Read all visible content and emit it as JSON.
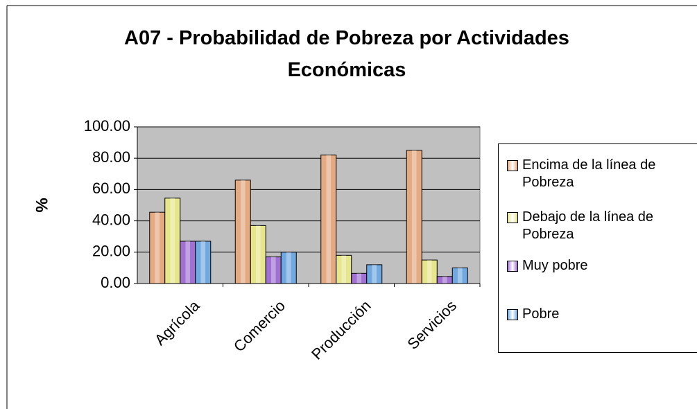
{
  "chart_data": {
    "type": "bar",
    "title": "A07 - Probabilidad de Pobreza por Actividades Económicas",
    "y_label": "%",
    "categories": [
      "Agrícola",
      "Comercio",
      "Producción",
      "Servicios"
    ],
    "series": [
      {
        "name": "Encima de la línea de Pobreza",
        "color": "#e4aa82",
        "values": [
          45.5,
          66,
          82,
          85
        ]
      },
      {
        "name": "Debajo de la línea de Pobreza",
        "color": "#e6e68c",
        "values": [
          54.5,
          37,
          18,
          15
        ]
      },
      {
        "name": "Muy pobre",
        "color": "#a070d2",
        "values": [
          27,
          17,
          6.5,
          4.5
        ]
      },
      {
        "name": "Pobre",
        "color": "#72a8e0",
        "values": [
          27,
          20,
          12,
          10
        ]
      }
    ],
    "ylim": [
      0,
      100
    ],
    "yticks": [
      {
        "value": 0,
        "label": "0.00"
      },
      {
        "value": 20,
        "label": "20.00"
      },
      {
        "value": 40,
        "label": "40.00"
      },
      {
        "value": 60,
        "label": "60.00"
      },
      {
        "value": 80,
        "label": "80.00"
      },
      {
        "value": 100,
        "label": "100.00"
      }
    ],
    "grid": true,
    "legend": "right"
  }
}
